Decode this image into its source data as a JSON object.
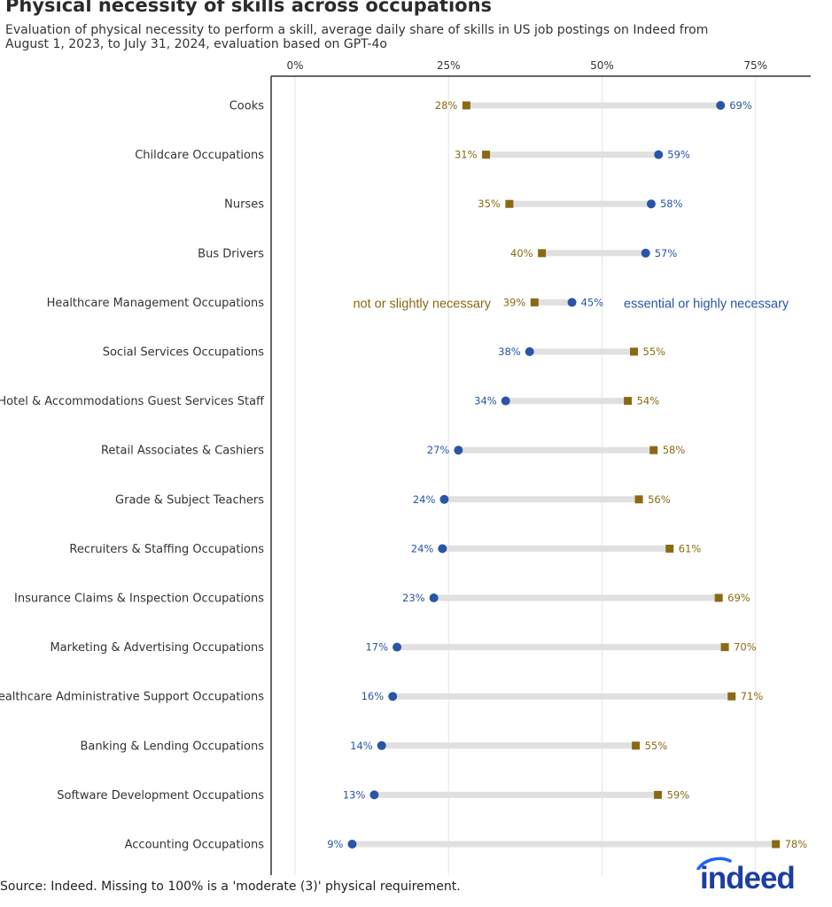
{
  "header": {
    "title": "Physical necessity of skills across occupations",
    "subtitle": "Evaluation of physical necessity to perform a skill, average daily share of skills in US job postings on Indeed from August 1, 2023, to July 31, 2024, evaluation based on GPT-4o"
  },
  "footer": {
    "source": "Source: Indeed. Missing to 100% is a 'moderate (3)' physical requirement.",
    "logo": "indeed"
  },
  "colors": {
    "essential": "#2a54a6",
    "not_necessary": "#8b6914",
    "bar": "#e0e0e0",
    "grid": "#e6e6e6",
    "axis": "#333333",
    "label": "#333333"
  },
  "chart_data": {
    "type": "dumbbell",
    "title": "Physical necessity of skills across occupations",
    "xlim": [
      0,
      80
    ],
    "ticks": [
      0,
      25,
      50,
      75
    ],
    "tick_labels": [
      "0%",
      "25%",
      "50%",
      "75%"
    ],
    "legend": {
      "not_necessary_label": "not or slightly necessary",
      "essential_label": "essential or highly necessary"
    },
    "series": [
      {
        "name": "not or slightly necessary",
        "marker": "square"
      },
      {
        "name": "essential or highly necessary",
        "marker": "circle"
      }
    ],
    "categories": [
      "Cooks",
      "Childcare Occupations",
      "Nurses",
      "Bus Drivers",
      "Healthcare Management Occupations",
      "Social Services Occupations",
      "Hotel & Accommodations Guest Services Staff",
      "Retail Associates & Cashiers",
      "Grade & Subject Teachers",
      "Recruiters & Staffing Occupations",
      "Insurance Claims & Inspection Occupations",
      "Marketing & Advertising Occupations",
      "Healthcare Administrative Support Occupations",
      "Banking & Lending Occupations",
      "Software Development Occupations",
      "Accounting Occupations"
    ],
    "essential_values": [
      69.3,
      59.2,
      58,
      57.1,
      45.1,
      38.2,
      34.3,
      26.6,
      24.3,
      24,
      22.6,
      16.6,
      15.9,
      14.1,
      12.9,
      9.3
    ],
    "essential_labels": [
      "69%",
      "59%",
      "58%",
      "57%",
      "45%",
      "38%",
      "34%",
      "27%",
      "24%",
      "24%",
      "23%",
      "17%",
      "16%",
      "14%",
      "13%",
      "9%"
    ],
    "not_necessary_values": [
      27.9,
      31.1,
      34.9,
      40.2,
      39,
      55.2,
      54.2,
      58.4,
      56,
      61,
      69,
      70,
      71.1,
      55.5,
      59.1,
      78.3
    ],
    "not_necessary_labels": [
      "28%",
      "31%",
      "35%",
      "40%",
      "39%",
      "55%",
      "54%",
      "58%",
      "56%",
      "61%",
      "69%",
      "70%",
      "71%",
      "55%",
      "59%",
      "78%"
    ]
  }
}
